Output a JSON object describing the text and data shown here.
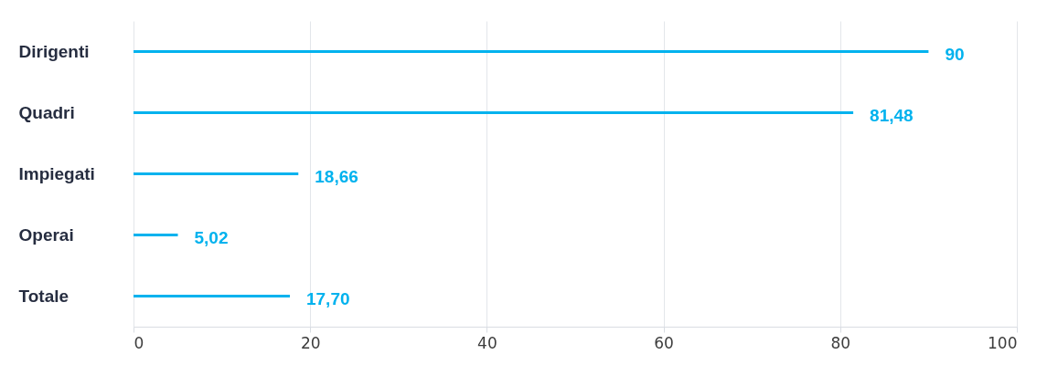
{
  "chart_data": {
    "type": "bar",
    "orientation": "horizontal",
    "categories": [
      "Dirigenti",
      "Quadri",
      "Impiegati",
      "Operai",
      "Totale"
    ],
    "values": [
      90,
      81.48,
      18.66,
      5.02,
      17.7
    ],
    "value_labels": [
      "90",
      "81,48",
      "18,66",
      "5,02",
      "17,70"
    ],
    "color": "#00b2ee",
    "xlim": [
      0,
      100
    ],
    "xticks": [
      0,
      20,
      40,
      60,
      80,
      100
    ],
    "grid": "x"
  }
}
